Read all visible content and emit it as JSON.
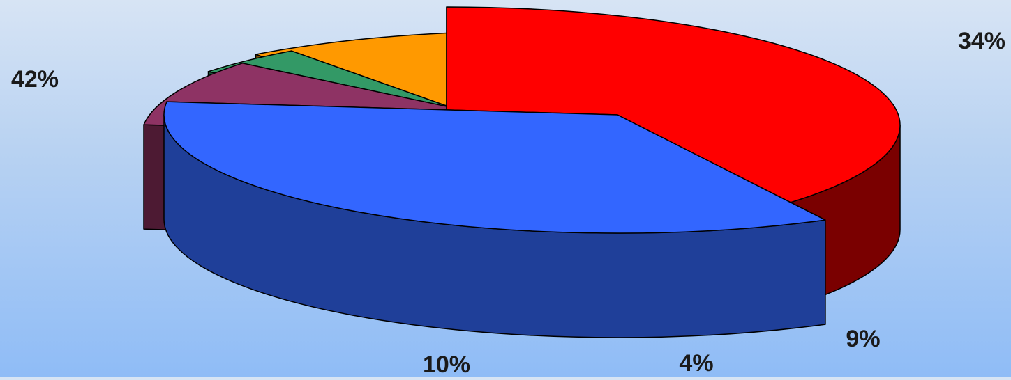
{
  "chart_data": {
    "type": "pie",
    "style": "3d-exploded",
    "legend": "none",
    "slices": [
      {
        "label": "42%",
        "value": 42,
        "color": "#ff0000",
        "side_color": "#7a0000"
      },
      {
        "label": "34%",
        "value": 34,
        "color": "#3366ff",
        "side_color": "#1f3f99"
      },
      {
        "label": "9%",
        "value": 9,
        "color": "#8e3364",
        "side_color": "#4d1a33"
      },
      {
        "label": "4%",
        "value": 4,
        "color": "#339966",
        "side_color": "#1e5238"
      },
      {
        "label": "10%",
        "value": 10,
        "color": "#ff9900",
        "side_color": "#7f4f00"
      }
    ]
  }
}
